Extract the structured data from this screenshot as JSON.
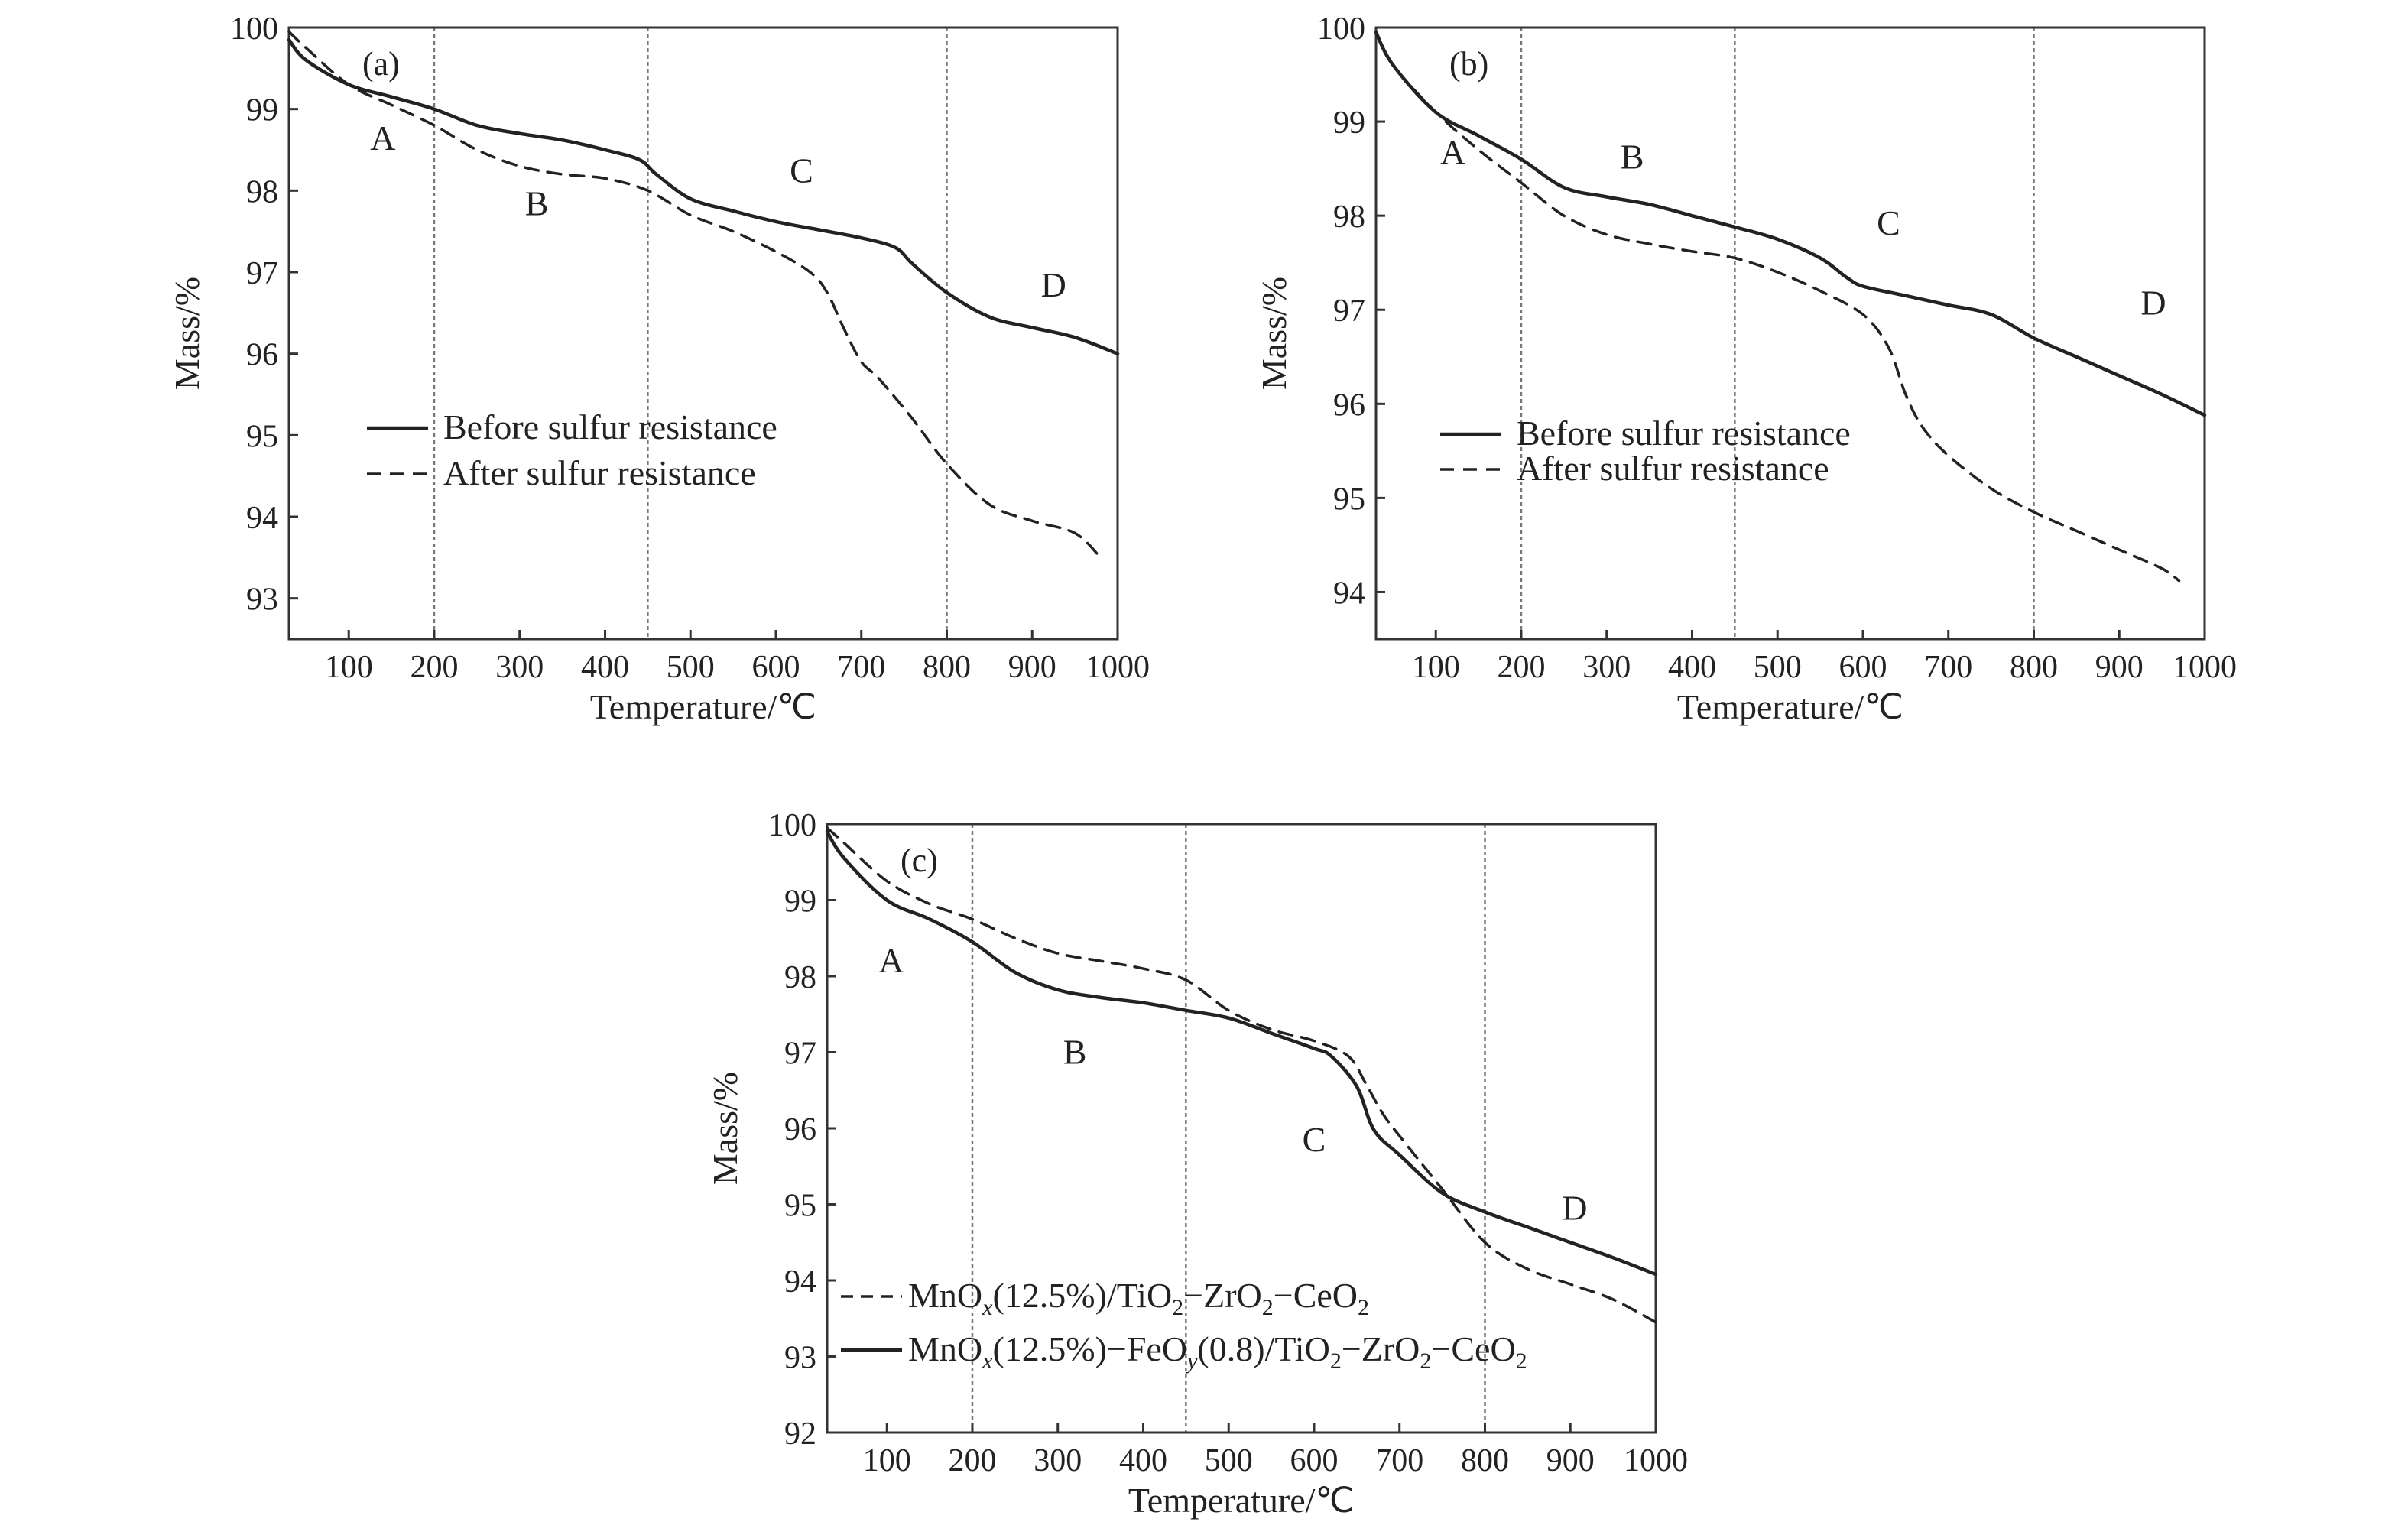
{
  "chart_data": [
    {
      "panel": "(a)",
      "type": "line",
      "xlabel": "Temperature/℃",
      "ylabel": "Mass/%",
      "xlim": [
        30,
        1000
      ],
      "ylim": [
        92.5,
        100
      ],
      "xticks": [
        100,
        200,
        300,
        400,
        500,
        600,
        700,
        800,
        900,
        1000
      ],
      "yticks": [
        93,
        94,
        95,
        96,
        97,
        98,
        99,
        100
      ],
      "vlines": [
        200,
        450,
        800
      ],
      "regions": [
        {
          "label": "A",
          "x": 140,
          "y": 98.5
        },
        {
          "label": "B",
          "x": 320,
          "y": 97.7
        },
        {
          "label": "C",
          "x": 630,
          "y": 98.1
        },
        {
          "label": "D",
          "x": 925,
          "y": 96.7
        }
      ],
      "legend_position": "lower-left",
      "series": [
        {
          "name": "Before sulfur resistance",
          "style": "solid",
          "x": [
            30,
            50,
            100,
            150,
            200,
            250,
            300,
            350,
            400,
            440,
            460,
            500,
            550,
            600,
            650,
            700,
            740,
            760,
            800,
            850,
            900,
            950,
            1000
          ],
          "y": [
            99.85,
            99.6,
            99.3,
            99.15,
            99.0,
            98.8,
            98.7,
            98.62,
            98.5,
            98.38,
            98.2,
            97.9,
            97.75,
            97.62,
            97.52,
            97.42,
            97.3,
            97.1,
            96.75,
            96.45,
            96.32,
            96.2,
            96.0
          ]
        },
        {
          "name": "After sulfur resistance",
          "style": "dashed",
          "x": [
            30,
            50,
            100,
            150,
            200,
            250,
            300,
            350,
            400,
            450,
            500,
            550,
            600,
            640,
            660,
            680,
            700,
            720,
            760,
            800,
            850,
            900,
            950,
            980
          ],
          "y": [
            99.95,
            99.75,
            99.3,
            99.05,
            98.8,
            98.5,
            98.3,
            98.2,
            98.15,
            98.0,
            97.7,
            97.5,
            97.25,
            97.0,
            96.75,
            96.3,
            95.9,
            95.7,
            95.2,
            94.65,
            94.15,
            93.95,
            93.8,
            93.5
          ]
        }
      ]
    },
    {
      "panel": "(b)",
      "type": "line",
      "xlabel": "Temperature/℃",
      "ylabel": "Mass/%",
      "xlim": [
        30,
        1000
      ],
      "ylim": [
        93.5,
        100
      ],
      "xticks": [
        100,
        200,
        300,
        400,
        500,
        600,
        700,
        800,
        900,
        1000
      ],
      "yticks": [
        94,
        95,
        96,
        97,
        98,
        99,
        100
      ],
      "vlines": [
        200,
        450,
        800
      ],
      "regions": [
        {
          "label": "A",
          "x": 120,
          "y": 98.55
        },
        {
          "label": "B",
          "x": 330,
          "y": 98.5
        },
        {
          "label": "C",
          "x": 630,
          "y": 97.8
        },
        {
          "label": "D",
          "x": 940,
          "y": 96.95
        }
      ],
      "legend_position": "lower-left",
      "series": [
        {
          "name": "Before sulfur resistance",
          "style": "solid",
          "x": [
            30,
            50,
            100,
            150,
            200,
            250,
            300,
            350,
            400,
            450,
            500,
            550,
            580,
            600,
            650,
            700,
            750,
            800,
            850,
            900,
            950,
            1000
          ],
          "y": [
            99.95,
            99.6,
            99.1,
            98.85,
            98.6,
            98.3,
            98.2,
            98.12,
            98.0,
            97.88,
            97.75,
            97.55,
            97.35,
            97.25,
            97.15,
            97.05,
            96.95,
            96.7,
            96.5,
            96.3,
            96.1,
            95.88
          ]
        },
        {
          "name": "After sulfur resistance",
          "style": "dashed",
          "x": [
            30,
            50,
            100,
            150,
            200,
            250,
            300,
            350,
            400,
            450,
            500,
            550,
            600,
            630,
            650,
            670,
            700,
            750,
            800,
            850,
            900,
            950,
            970
          ],
          "y": [
            99.95,
            99.6,
            99.1,
            98.7,
            98.35,
            98.0,
            97.8,
            97.7,
            97.62,
            97.55,
            97.4,
            97.2,
            96.95,
            96.6,
            96.1,
            95.75,
            95.45,
            95.1,
            94.85,
            94.65,
            94.45,
            94.25,
            94.12
          ]
        }
      ]
    },
    {
      "panel": "(c)",
      "type": "line",
      "xlabel": "Temperature/℃",
      "ylabel": "Mass/%",
      "xlim": [
        30,
        1000
      ],
      "ylim": [
        92,
        100
      ],
      "xticks": [
        100,
        200,
        300,
        400,
        500,
        600,
        700,
        800,
        900,
        1000
      ],
      "yticks": [
        92,
        93,
        94,
        95,
        96,
        97,
        98,
        99,
        100
      ],
      "vlines": [
        200,
        450,
        800
      ],
      "regions": [
        {
          "label": "A",
          "x": 105,
          "y": 98.05
        },
        {
          "label": "B",
          "x": 320,
          "y": 96.85
        },
        {
          "label": "C",
          "x": 600,
          "y": 95.7
        },
        {
          "label": "D",
          "x": 905,
          "y": 94.8
        }
      ],
      "legend_position": "lower-left",
      "series": [
        {
          "name": "MnOx(12.5%)/TiO2−ZrO2−CeO2",
          "style": "dashed",
          "x": [
            30,
            50,
            100,
            150,
            200,
            250,
            300,
            350,
            400,
            450,
            500,
            550,
            600,
            640,
            660,
            680,
            700,
            750,
            800,
            850,
            900,
            950,
            1000
          ],
          "y": [
            99.95,
            99.75,
            99.25,
            98.95,
            98.75,
            98.5,
            98.3,
            98.2,
            98.1,
            97.95,
            97.55,
            97.3,
            97.15,
            96.95,
            96.6,
            96.2,
            95.9,
            95.2,
            94.5,
            94.15,
            93.95,
            93.75,
            93.45
          ]
        },
        {
          "name": "MnOx(12.5%)−FeOy(0.8)/TiO2−ZrO2−CeO2",
          "style": "solid",
          "x": [
            30,
            50,
            100,
            150,
            200,
            250,
            300,
            350,
            400,
            450,
            500,
            550,
            600,
            620,
            650,
            670,
            700,
            750,
            800,
            850,
            900,
            950,
            1000
          ],
          "y": [
            99.9,
            99.55,
            99.0,
            98.75,
            98.45,
            98.05,
            97.82,
            97.72,
            97.65,
            97.55,
            97.45,
            97.25,
            97.05,
            96.95,
            96.55,
            95.98,
            95.65,
            95.15,
            94.9,
            94.7,
            94.5,
            94.3,
            94.08
          ]
        }
      ]
    }
  ],
  "legend_c": [
    {
      "style": "dashed",
      "parts": [
        [
          "MnO",
          "n"
        ],
        [
          "x",
          "sub"
        ],
        [
          "(12.5%)/TiO",
          "n"
        ],
        [
          "2",
          "sub"
        ],
        [
          "−ZrO",
          "n"
        ],
        [
          "2",
          "sub"
        ],
        [
          "−CeO",
          "n"
        ],
        [
          "2",
          "sub"
        ]
      ]
    },
    {
      "style": "solid",
      "parts": [
        [
          "MnO",
          "n"
        ],
        [
          "x",
          "sub"
        ],
        [
          "(12.5%)−FeO",
          "n"
        ],
        [
          "y",
          "sub"
        ],
        [
          "(0.8)/TiO",
          "n"
        ],
        [
          "2",
          "sub"
        ],
        [
          "−ZrO",
          "n"
        ],
        [
          "2",
          "sub"
        ],
        [
          "−CeO",
          "n"
        ],
        [
          "2",
          "sub"
        ]
      ]
    }
  ]
}
